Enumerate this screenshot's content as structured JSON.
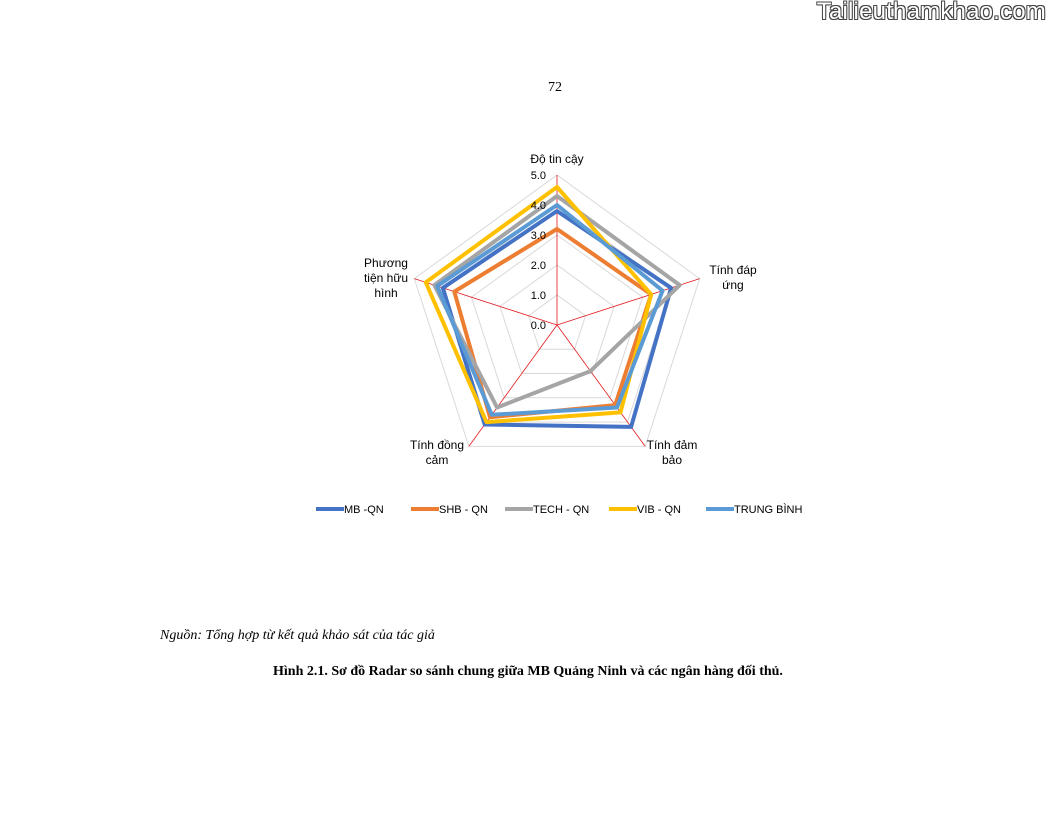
{
  "watermark": "Tailieuthamkhao.com",
  "page_number": "72",
  "chart_data": {
    "type": "radar",
    "categories": [
      [
        "Độ tin cậy"
      ],
      [
        "Tính đáp",
        "ứng"
      ],
      [
        "Tính đảm",
        "bảo"
      ],
      [
        "Tính đồng",
        "cảm"
      ],
      [
        "Phương",
        "tiện hữu",
        "hình"
      ]
    ],
    "rlim": [
      0,
      5
    ],
    "ticks": [
      "0.0",
      "1.0",
      "2.0",
      "3.0",
      "4.0",
      "5.0"
    ],
    "legend_position": "bottom",
    "series": [
      {
        "name": "MB -QN",
        "color": "#4472C4",
        "values": [
          3.8,
          4.0,
          4.2,
          4.1,
          4.0
        ]
      },
      {
        "name": "SHB - QN",
        "color": "#ED7D31",
        "values": [
          3.2,
          3.3,
          3.3,
          3.8,
          3.6
        ]
      },
      {
        "name": "TECH - QN",
        "color": "#A5A5A5",
        "values": [
          4.3,
          4.3,
          1.9,
          3.4,
          4.3
        ]
      },
      {
        "name": "VIB - QN",
        "color": "#FFC000",
        "values": [
          4.6,
          3.3,
          3.6,
          4.0,
          4.6
        ]
      },
      {
        "name": "TRUNG BÌNH",
        "color": "#5B9BD5",
        "values": [
          4.0,
          3.7,
          3.4,
          3.7,
          4.2
        ]
      }
    ]
  },
  "source": "Nguồn: Tổng hợp từ kết quả khảo sát của tác giả",
  "caption": "Hình 2.1. Sơ đồ Radar so sánh chung  giữa MB Quảng Ninh và các ngân hàng đối thủ."
}
